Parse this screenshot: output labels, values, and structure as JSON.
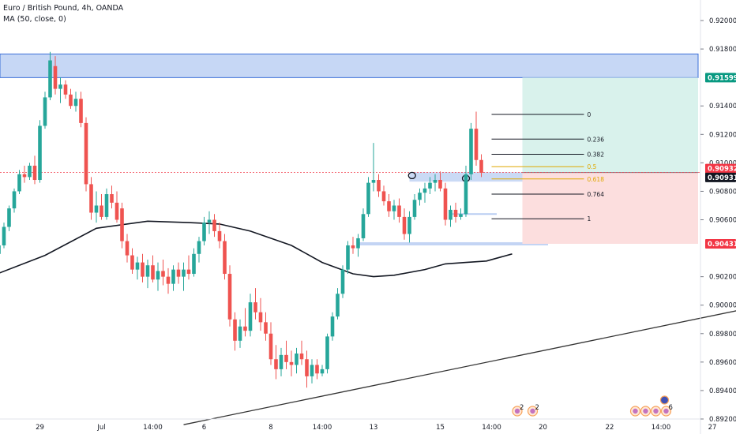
{
  "header": {
    "symbol_line": "Euro / British Pound, 4h, OANDA",
    "indicator_line": "MA (50, close, 0)"
  },
  "chart_data": {
    "type": "candlestick",
    "title": "Euro / British Pound, 4h, OANDA",
    "indicator": "MA (50, close, 0)",
    "ylim": [
      0.8915,
      0.921
    ],
    "y_ticks": [
      {
        "label": "0.92000",
        "value": 0.92
      },
      {
        "label": "0.91800",
        "value": 0.918
      },
      {
        "label": "0.91400",
        "value": 0.914
      },
      {
        "label": "0.91200",
        "value": 0.912
      },
      {
        "label": "0.91000",
        "value": 0.91
      },
      {
        "label": "0.90800",
        "value": 0.908
      },
      {
        "label": "0.90600",
        "value": 0.906
      },
      {
        "label": "0.90200",
        "value": 0.902
      },
      {
        "label": "0.90000",
        "value": 0.9
      },
      {
        "label": "0.89800",
        "value": 0.898
      },
      {
        "label": "0.89600",
        "value": 0.896
      },
      {
        "label": "0.89400",
        "value": 0.894
      },
      {
        "label": "0.89200",
        "value": 0.892
      }
    ],
    "x_ticks": [
      {
        "label": "29",
        "bar": 9
      },
      {
        "label": "Jul",
        "bar": 21
      },
      {
        "label": "14:00",
        "bar": 31
      },
      {
        "label": "6",
        "bar": 41
      },
      {
        "label": "8",
        "bar": 54
      },
      {
        "label": "14:00",
        "bar": 64
      },
      {
        "label": "13",
        "bar": 74
      },
      {
        "label": "15",
        "bar": 87
      },
      {
        "label": "14:00",
        "bar": 97
      },
      {
        "label": "20",
        "bar": 107
      },
      {
        "label": "22",
        "bar": 120
      },
      {
        "label": "14:00",
        "bar": 130
      },
      {
        "label": "27",
        "bar": 140
      }
    ],
    "price_tags": [
      {
        "label": "0.91599",
        "value": 0.91599,
        "color": "#089981"
      },
      {
        "label": "0.90932",
        "value": 0.90932,
        "color": "#f23645"
      },
      {
        "label": "0.90931",
        "value": 0.90931,
        "color": "#131722"
      },
      {
        "label": "0.90431",
        "value": 0.90431,
        "color": "#f23645"
      }
    ],
    "candles": [
      [
        0.9048,
        0.905,
        0.9034,
        0.9036
      ],
      [
        0.9036,
        0.9045,
        0.903,
        0.9042
      ],
      [
        0.9042,
        0.9058,
        0.904,
        0.9055
      ],
      [
        0.9055,
        0.907,
        0.9052,
        0.9068
      ],
      [
        0.9068,
        0.9082,
        0.9065,
        0.908
      ],
      [
        0.908,
        0.9095,
        0.9078,
        0.9092
      ],
      [
        0.9092,
        0.9098,
        0.9086,
        0.909
      ],
      [
        0.909,
        0.91,
        0.9088,
        0.9098
      ],
      [
        0.9098,
        0.9105,
        0.9085,
        0.9088
      ],
      [
        0.9088,
        0.913,
        0.9086,
        0.9126
      ],
      [
        0.9126,
        0.915,
        0.9124,
        0.9146
      ],
      [
        0.9146,
        0.9178,
        0.9144,
        0.9172
      ],
      [
        0.9168,
        0.9175,
        0.9148,
        0.9152
      ],
      [
        0.9152,
        0.916,
        0.9142,
        0.9155
      ],
      [
        0.9155,
        0.9158,
        0.9145,
        0.9148
      ],
      [
        0.9148,
        0.9152,
        0.9138,
        0.914
      ],
      [
        0.914,
        0.915,
        0.9136,
        0.9145
      ],
      [
        0.9145,
        0.915,
        0.9125,
        0.9128
      ],
      [
        0.9128,
        0.9132,
        0.908,
        0.9085
      ],
      [
        0.9085,
        0.909,
        0.906,
        0.9065
      ],
      [
        0.9065,
        0.908,
        0.9058,
        0.907
      ],
      [
        0.907,
        0.9078,
        0.906,
        0.9062
      ],
      [
        0.9062,
        0.9082,
        0.906,
        0.9078
      ],
      [
        0.9078,
        0.9084,
        0.9068,
        0.9072
      ],
      [
        0.9072,
        0.908,
        0.9058,
        0.906
      ],
      [
        0.9068,
        0.9072,
        0.904,
        0.9045
      ],
      [
        0.9045,
        0.905,
        0.903,
        0.9035
      ],
      [
        0.9035,
        0.904,
        0.9022,
        0.9025
      ],
      [
        0.9025,
        0.9034,
        0.9018,
        0.903
      ],
      [
        0.903,
        0.9036,
        0.9016,
        0.902
      ],
      [
        0.902,
        0.9032,
        0.9012,
        0.9028
      ],
      [
        0.9028,
        0.9035,
        0.9016,
        0.9018
      ],
      [
        0.9018,
        0.903,
        0.901,
        0.9024
      ],
      [
        0.9024,
        0.9032,
        0.9014,
        0.902
      ],
      [
        0.902,
        0.9026,
        0.9008,
        0.9015
      ],
      [
        0.9015,
        0.9028,
        0.901,
        0.9025
      ],
      [
        0.9025,
        0.903,
        0.9015,
        0.902
      ],
      [
        0.902,
        0.903,
        0.901,
        0.9025
      ],
      [
        0.9025,
        0.9035,
        0.9018,
        0.9022
      ],
      [
        0.9022,
        0.904,
        0.902,
        0.9036
      ],
      [
        0.9036,
        0.9048,
        0.903,
        0.9045
      ],
      [
        0.9045,
        0.9062,
        0.9042,
        0.9058
      ],
      [
        0.9058,
        0.9066,
        0.905,
        0.906
      ],
      [
        0.906,
        0.9064,
        0.9048,
        0.9052
      ],
      [
        0.9052,
        0.9058,
        0.904,
        0.9045
      ],
      [
        0.9045,
        0.905,
        0.9018,
        0.9022
      ],
      [
        0.9022,
        0.9028,
        0.8985,
        0.899
      ],
      [
        0.899,
        0.8995,
        0.8968,
        0.8975
      ],
      [
        0.8975,
        0.899,
        0.897,
        0.8985
      ],
      [
        0.8985,
        0.8998,
        0.8978,
        0.8982
      ],
      [
        0.8982,
        0.9008,
        0.8978,
        0.9002
      ],
      [
        0.9002,
        0.9012,
        0.899,
        0.8995
      ],
      [
        0.8995,
        0.9005,
        0.8982,
        0.8988
      ],
      [
        0.8988,
        0.8995,
        0.8975,
        0.898
      ],
      [
        0.898,
        0.8988,
        0.8958,
        0.8962
      ],
      [
        0.8962,
        0.8972,
        0.8948,
        0.8955
      ],
      [
        0.8955,
        0.897,
        0.895,
        0.8965
      ],
      [
        0.8965,
        0.8975,
        0.8955,
        0.896
      ],
      [
        0.896,
        0.8968,
        0.895,
        0.8958
      ],
      [
        0.8958,
        0.897,
        0.8952,
        0.8966
      ],
      [
        0.8966,
        0.8975,
        0.8958,
        0.8962
      ],
      [
        0.8962,
        0.8968,
        0.8942,
        0.895
      ],
      [
        0.895,
        0.8962,
        0.8945,
        0.8958
      ],
      [
        0.8958,
        0.8962,
        0.8948,
        0.8952
      ],
      [
        0.8952,
        0.8958,
        0.895,
        0.8955
      ],
      [
        0.8955,
        0.898,
        0.8952,
        0.8978
      ],
      [
        0.8978,
        0.8995,
        0.8975,
        0.8992
      ],
      [
        0.8992,
        0.9012,
        0.899,
        0.9008
      ],
      [
        0.9008,
        0.9028,
        0.9005,
        0.9025
      ],
      [
        0.9025,
        0.9045,
        0.9022,
        0.9042
      ],
      [
        0.9042,
        0.9048,
        0.9036,
        0.904
      ],
      [
        0.904,
        0.905,
        0.9034,
        0.9047
      ],
      [
        0.9047,
        0.9068,
        0.9045,
        0.9064
      ],
      [
        0.9064,
        0.909,
        0.9062,
        0.9086
      ],
      [
        0.9086,
        0.9114,
        0.908,
        0.9088
      ],
      [
        0.9088,
        0.9092,
        0.9076,
        0.908
      ],
      [
        0.908,
        0.9084,
        0.907,
        0.9073
      ],
      [
        0.9073,
        0.9078,
        0.9062,
        0.9066
      ],
      [
        0.9066,
        0.9074,
        0.906,
        0.907
      ],
      [
        0.907,
        0.9075,
        0.9058,
        0.9062
      ],
      [
        0.9062,
        0.9068,
        0.9046,
        0.905
      ],
      [
        0.905,
        0.9066,
        0.9044,
        0.9062
      ],
      [
        0.9062,
        0.9078,
        0.906,
        0.9074
      ],
      [
        0.9074,
        0.9082,
        0.907,
        0.9079
      ],
      [
        0.9079,
        0.9086,
        0.9072,
        0.9082
      ],
      [
        0.9082,
        0.909,
        0.9078,
        0.9086
      ],
      [
        0.9086,
        0.9092,
        0.908,
        0.9088
      ],
      [
        0.9088,
        0.9094,
        0.908,
        0.9082
      ],
      [
        0.9082,
        0.9086,
        0.9056,
        0.906
      ],
      [
        0.906,
        0.907,
        0.9055,
        0.9067
      ],
      [
        0.9067,
        0.9072,
        0.9058,
        0.9062
      ],
      [
        0.9062,
        0.9068,
        0.906,
        0.9064
      ],
      [
        0.9064,
        0.9098,
        0.9062,
        0.9092
      ],
      [
        0.9092,
        0.9128,
        0.9088,
        0.9124
      ],
      [
        0.9124,
        0.9136,
        0.9098,
        0.9102
      ],
      [
        0.9102,
        0.9106,
        0.909,
        0.9093
      ]
    ],
    "ma50": [
      [
        0,
        0.9021
      ],
      [
        10,
        0.9035
      ],
      [
        20,
        0.9054
      ],
      [
        30,
        0.9059
      ],
      [
        38,
        0.9058
      ],
      [
        44,
        0.9057
      ],
      [
        50,
        0.9052
      ],
      [
        58,
        0.9042
      ],
      [
        64,
        0.903
      ],
      [
        70,
        0.9022
      ],
      [
        74,
        0.902
      ],
      [
        78,
        0.9021
      ],
      [
        84,
        0.9025
      ],
      [
        88,
        0.9029
      ],
      [
        92,
        0.903
      ],
      [
        96,
        0.9031
      ],
      [
        101,
        0.9036
      ]
    ],
    "trendline": {
      "from": [
        37,
        0.8916
      ],
      "to": [
        150,
        0.9
      ]
    },
    "supply_zone": {
      "bar_from": -1,
      "bar_to": 146,
      "y_from": 0.91599,
      "y_to": 0.91765
    },
    "demand_zone": {
      "bar_from": 81,
      "bar_to": 122,
      "y_from": 0.90868,
      "y_to": 0.90934
    },
    "support_line": {
      "bar_from": 71,
      "bar_to": 108,
      "value": 0.90431
    },
    "mini_range": {
      "bar_from": 89,
      "bar_to": 98,
      "value": 0.9064
    },
    "position": {
      "bar_from": 103,
      "bar_to": 146,
      "entry": 0.90932,
      "target": 0.91599,
      "stop": 0.90431
    },
    "fib": {
      "bar_from": 97,
      "bar_to": 115,
      "levels": [
        {
          "label": "0",
          "value": 0.9134,
          "color": "#131722"
        },
        {
          "label": "0.236",
          "value": 0.91167,
          "color": "#131722"
        },
        {
          "label": "0.382",
          "value": 0.9106,
          "color": "#131722"
        },
        {
          "label": "0.5",
          "value": 0.90973,
          "color": "#e0a800"
        },
        {
          "label": "0.618",
          "value": 0.90887,
          "color": "#e0a800"
        },
        {
          "label": "0.764",
          "value": 0.9078,
          "color": "#131722"
        },
        {
          "label": "1",
          "value": 0.90607,
          "color": "#131722"
        }
      ]
    },
    "ellipses": [
      {
        "bar": 81.5,
        "value": 0.909
      },
      {
        "bar": 92,
        "value": 0.9088
      }
    ],
    "event_markers": [
      {
        "bar": 102,
        "label": "2"
      },
      {
        "bar": 105,
        "label": "2"
      },
      {
        "bar": 125,
        "label": ""
      },
      {
        "bar": 127,
        "label": ""
      },
      {
        "bar": 129,
        "label": ""
      },
      {
        "bar": 131,
        "label": "6"
      }
    ],
    "colors": {
      "up": "#26a69a",
      "down": "#ef5350",
      "ma": "#131722"
    }
  }
}
